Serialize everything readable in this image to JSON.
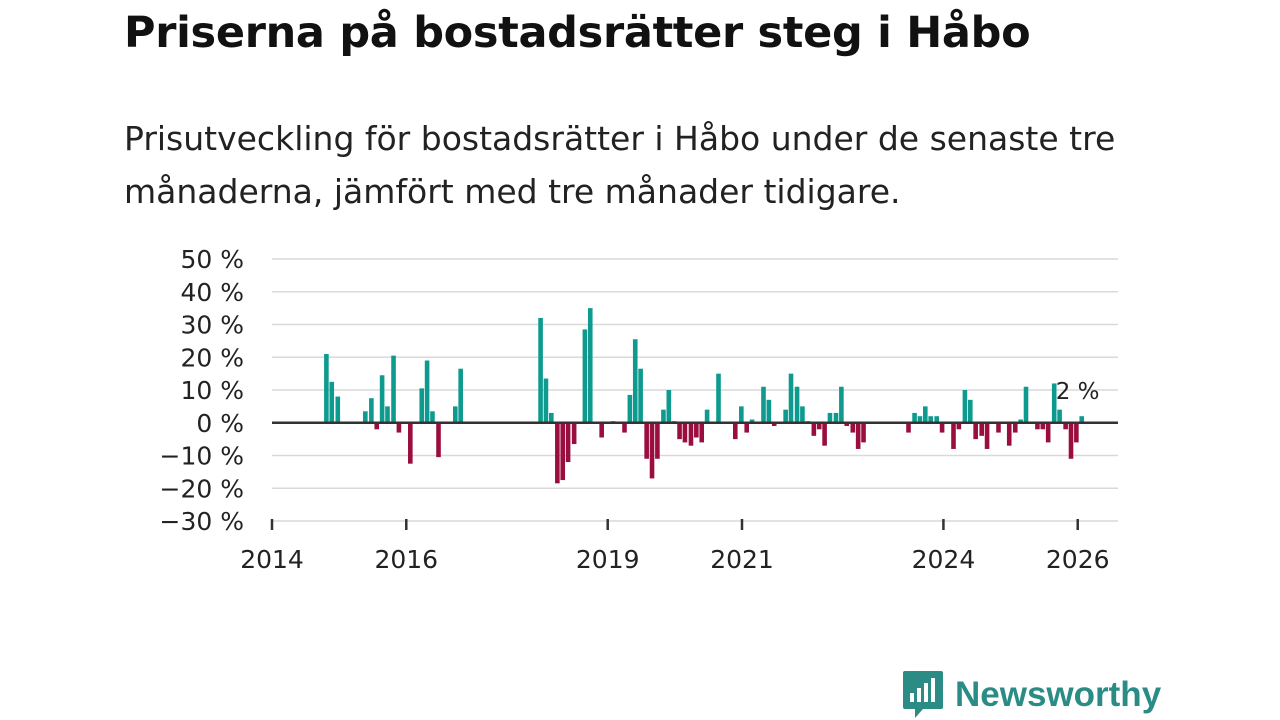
{
  "header": {
    "title": "Priserna på bostadsrätter steg i Håbo",
    "subtitle": "Prisutveckling för bostadsrätter i Håbo under de senaste tre månaderna, jämfört med tre månader tidigare."
  },
  "colors": {
    "positive": "#0e9a8e",
    "negative": "#9a0e3f",
    "grid": "#d9d9d9",
    "axis": "#333333",
    "brand": "#2b8c86"
  },
  "brand": {
    "name": "Newsworthy"
  },
  "chart_data": {
    "type": "bar",
    "title": "Priserna på bostadsrätter steg i Håbo",
    "ylabel": "",
    "xlabel": "",
    "ylim": [
      -30,
      50
    ],
    "yticks": [
      50,
      40,
      30,
      20,
      10,
      0,
      -10,
      -20,
      -30
    ],
    "ytick_labels": [
      "50 %",
      "40 %",
      "30 %",
      "20 %",
      "10 %",
      "0 %",
      "−10 %",
      "−20 %",
      "−30 %"
    ],
    "xlim": [
      2014.0,
      2026.6
    ],
    "xticks": [
      {
        "year": 2014,
        "label": "2014"
      },
      {
        "year": 2016,
        "label": "2016"
      },
      {
        "year": 2019,
        "label": "2019"
      },
      {
        "year": 2021,
        "label": "2021"
      },
      {
        "year": 2024,
        "label": "2024"
      },
      {
        "year": 2026,
        "label": "2026"
      }
    ],
    "annotation": {
      "label": "2 %",
      "t": 2026.0,
      "value": 2
    },
    "grid": true,
    "legend": "none",
    "series": [
      {
        "name": "Prisutveckling",
        "points": [
          [
            2014.81,
            21
          ],
          [
            2014.89,
            12.5
          ],
          [
            2014.98,
            8
          ],
          [
            2015.39,
            3.5
          ],
          [
            2015.48,
            7.5
          ],
          [
            2015.56,
            -2
          ],
          [
            2015.64,
            14.5
          ],
          [
            2015.72,
            5
          ],
          [
            2015.81,
            20.5
          ],
          [
            2015.89,
            -3
          ],
          [
            2016.06,
            -12.5
          ],
          [
            2016.23,
            10.5
          ],
          [
            2016.31,
            19
          ],
          [
            2016.39,
            3.5
          ],
          [
            2016.48,
            -10.5
          ],
          [
            2016.73,
            5
          ],
          [
            2016.81,
            16.5
          ],
          [
            2018.0,
            32
          ],
          [
            2018.08,
            13.5
          ],
          [
            2018.16,
            3
          ],
          [
            2018.25,
            -18.5
          ],
          [
            2018.33,
            -17.5
          ],
          [
            2018.41,
            -12
          ],
          [
            2018.5,
            -6.5
          ],
          [
            2018.66,
            28.5
          ],
          [
            2018.74,
            35
          ],
          [
            2018.91,
            -4.5
          ],
          [
            2019.08,
            0.5
          ],
          [
            2019.25,
            -3
          ],
          [
            2019.33,
            8.5
          ],
          [
            2019.41,
            25.5
          ],
          [
            2019.49,
            16.5
          ],
          [
            2019.58,
            -11
          ],
          [
            2019.66,
            -17
          ],
          [
            2019.74,
            -11
          ],
          [
            2019.83,
            4
          ],
          [
            2019.91,
            10
          ],
          [
            2019.99,
            0.5
          ],
          [
            2020.07,
            -5
          ],
          [
            2020.15,
            -6
          ],
          [
            2020.24,
            -7
          ],
          [
            2020.32,
            -4.5
          ],
          [
            2020.4,
            -6
          ],
          [
            2020.48,
            4
          ],
          [
            2020.65,
            15
          ],
          [
            2020.9,
            -5
          ],
          [
            2020.99,
            5
          ],
          [
            2021.07,
            -3
          ],
          [
            2021.15,
            1
          ],
          [
            2021.32,
            11
          ],
          [
            2021.4,
            7
          ],
          [
            2021.48,
            -1
          ],
          [
            2021.65,
            4
          ],
          [
            2021.73,
            15
          ],
          [
            2021.82,
            11
          ],
          [
            2021.9,
            5
          ],
          [
            2021.98,
            0.5
          ],
          [
            2022.07,
            -4
          ],
          [
            2022.15,
            -2
          ],
          [
            2022.23,
            -7
          ],
          [
            2022.31,
            3
          ],
          [
            2022.4,
            3
          ],
          [
            2022.48,
            11
          ],
          [
            2022.56,
            -1
          ],
          [
            2022.65,
            -3
          ],
          [
            2022.73,
            -8
          ],
          [
            2022.81,
            -6
          ],
          [
            2023.48,
            -3
          ],
          [
            2023.57,
            3
          ],
          [
            2023.65,
            2
          ],
          [
            2023.73,
            5
          ],
          [
            2023.81,
            2
          ],
          [
            2023.9,
            2
          ],
          [
            2023.98,
            -3
          ],
          [
            2024.15,
            -8
          ],
          [
            2024.23,
            -2
          ],
          [
            2024.32,
            10
          ],
          [
            2024.4,
            7
          ],
          [
            2024.48,
            -5
          ],
          [
            2024.57,
            -4
          ],
          [
            2024.65,
            -8
          ],
          [
            2024.82,
            -3
          ],
          [
            2024.98,
            -7
          ],
          [
            2025.07,
            -3
          ],
          [
            2025.15,
            1
          ],
          [
            2025.23,
            11
          ],
          [
            2025.4,
            -2
          ],
          [
            2025.48,
            -2
          ],
          [
            2025.56,
            -6
          ],
          [
            2025.65,
            12
          ],
          [
            2025.73,
            4
          ],
          [
            2025.82,
            -2
          ],
          [
            2025.9,
            -11
          ],
          [
            2025.98,
            -6
          ],
          [
            2026.06,
            2
          ]
        ]
      }
    ]
  }
}
